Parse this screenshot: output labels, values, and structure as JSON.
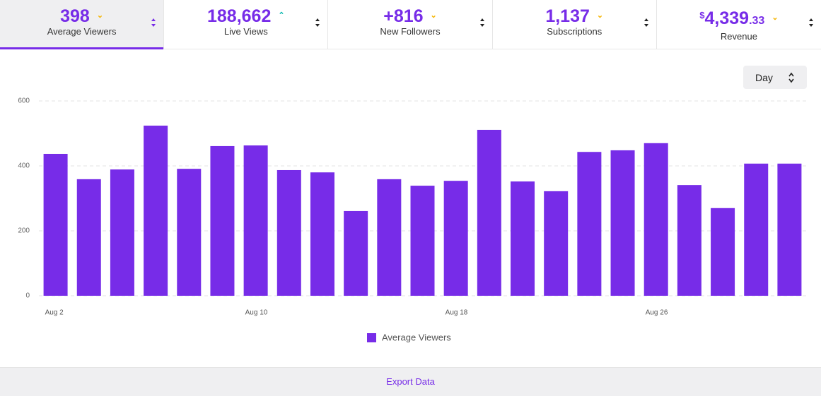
{
  "tabs": [
    {
      "value": "398",
      "label": "Average Viewers"
    },
    {
      "value": "188,662",
      "label": "Live Views"
    },
    {
      "value": "+816",
      "label": "New Followers"
    },
    {
      "value": "1,137",
      "label": "Subscriptions"
    },
    {
      "currency": "$",
      "value": "4,339",
      "cents": ".33",
      "label": "Revenue"
    }
  ],
  "period": "Day",
  "chart_data": {
    "type": "bar",
    "categories": [
      "Aug 2",
      null,
      null,
      null,
      null,
      null,
      "Aug 10",
      null,
      null,
      null,
      null,
      null,
      "Aug 18",
      null,
      null,
      null,
      null,
      null,
      "Aug 26",
      null,
      null,
      null,
      null
    ],
    "series": [
      {
        "name": "Average Viewers",
        "color": "#772ce8",
        "values": [
          437,
          359,
          389,
          524,
          391,
          461,
          463,
          387,
          380,
          261,
          359,
          339,
          354,
          511,
          352,
          322,
          443,
          448,
          470,
          341,
          270,
          407,
          407
        ]
      }
    ],
    "ylim": [
      0,
      600
    ],
    "yticks": [
      0,
      200,
      400,
      600
    ],
    "grid": true,
    "legend": "bottom"
  },
  "footer": {
    "action": "Export Data"
  }
}
